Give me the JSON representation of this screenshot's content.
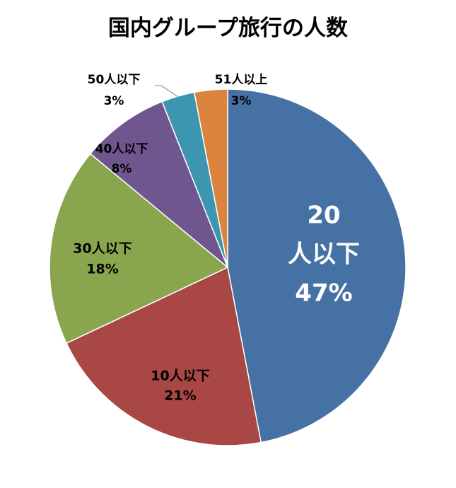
{
  "chart_data": {
    "type": "pie",
    "title": "国内グループ旅行の人数",
    "slices": [
      {
        "label": "20人以下",
        "value": 47,
        "value_label": "47%",
        "color": "#4671A5"
      },
      {
        "label": "10人以下",
        "value": 21,
        "value_label": "21%",
        "color": "#A84744"
      },
      {
        "label": "30人以下",
        "value": 18,
        "value_label": "18%",
        "color": "#89A54E"
      },
      {
        "label": "40人以下",
        "value": 8,
        "value_label": "8%",
        "color": "#70568E"
      },
      {
        "label": "50人以下",
        "value": 3,
        "value_label": "3%",
        "color": "#3D96AF"
      },
      {
        "label": "51人以上",
        "value": 3,
        "value_label": "3%",
        "color": "#DB843D"
      }
    ]
  }
}
